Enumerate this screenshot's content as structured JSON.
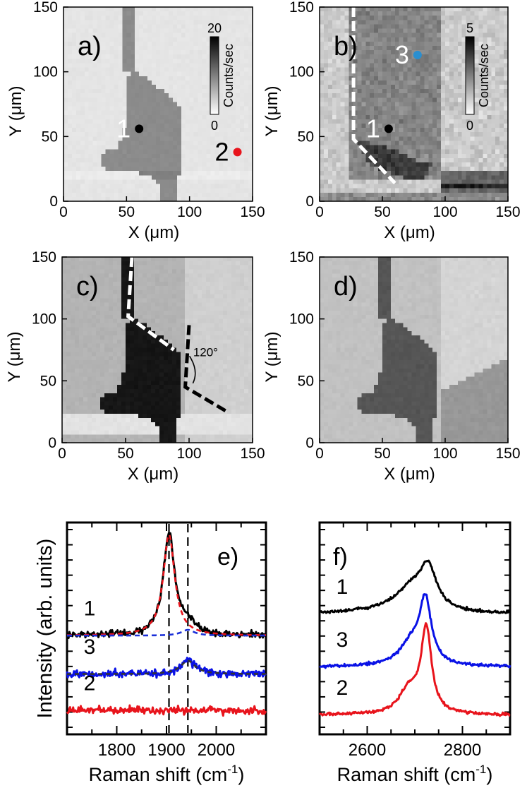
{
  "chart_data": [
    {
      "id": "a",
      "type": "heatmap",
      "panel_label": "a)",
      "xlabel": "X (μm)",
      "ylabel": "Y (μm)",
      "xlim": [
        0,
        150
      ],
      "ylim": [
        0,
        150
      ],
      "xticks": [
        "0",
        "50",
        "100",
        "150"
      ],
      "yticks": [
        "0",
        "50",
        "100",
        "150"
      ],
      "colorbar": {
        "label": "Counts/sec",
        "min": "0",
        "max": "20"
      },
      "markers": [
        {
          "label": "1",
          "x": 60,
          "y": 56,
          "color": "#000000"
        },
        {
          "label": "2",
          "x": 138,
          "y": 38,
          "color": "#e8141c"
        }
      ]
    },
    {
      "id": "b",
      "type": "heatmap",
      "panel_label": "b)",
      "xlabel": "X (μm)",
      "ylabel": "Y (μm)",
      "xlim": [
        0,
        150
      ],
      "ylim": [
        0,
        150
      ],
      "xticks": [
        "0",
        "50",
        "100",
        "150"
      ],
      "yticks": [
        "0",
        "50",
        "100",
        "150"
      ],
      "colorbar": {
        "label": "Counts/sec",
        "min": "0",
        "max": "5"
      },
      "markers": [
        {
          "label": "1",
          "x": 55,
          "y": 56,
          "color": "#000000"
        },
        {
          "label": "3",
          "x": 78,
          "y": 113,
          "color": "#2a8fd0"
        }
      ],
      "edge_lines": [
        {
          "points": [
            [
              27,
              150
            ],
            [
              27,
              48
            ],
            [
              60,
              14
            ]
          ],
          "color": "#ffffff"
        }
      ]
    },
    {
      "id": "c",
      "type": "heatmap",
      "panel_label": "c)",
      "xlabel": "X (μm)",
      "ylabel": "Y (μm)",
      "xlim": [
        0,
        150
      ],
      "ylim": [
        0,
        150
      ],
      "xticks": [
        "0",
        "50",
        "100",
        "150"
      ],
      "yticks": [
        "0",
        "50",
        "100",
        "150"
      ],
      "angle_label": "120°",
      "edge_lines": [
        {
          "points": [
            [
              55,
              150
            ],
            [
              52,
              102
            ],
            [
              88,
              75
            ]
          ],
          "color": "#ffffff"
        },
        {
          "points": [
            [
              100,
              95
            ],
            [
              97,
              45
            ],
            [
              130,
              25
            ]
          ],
          "color": "#000000"
        }
      ]
    },
    {
      "id": "d",
      "type": "heatmap",
      "panel_label": "d)",
      "xlabel": "X (μm)",
      "ylabel": "Y (μm)",
      "xlim": [
        0,
        150
      ],
      "ylim": [
        0,
        150
      ],
      "xticks": [
        "0",
        "50",
        "100",
        "150"
      ],
      "yticks": [
        "0",
        "50",
        "100",
        "150"
      ]
    },
    {
      "id": "e",
      "type": "line",
      "panel_label": "e)",
      "xlabel": "Raman shift (cm",
      "xlabel_sup": "-1",
      "xlabel_tail": ")",
      "ylabel": "Intensity (arb. units)",
      "xlim": [
        1700,
        2100
      ],
      "xticks": [
        "1800",
        "1900",
        "2000"
      ],
      "ylim": [
        -0.2,
        4.2
      ],
      "vlines": [
        1905,
        1943
      ],
      "series": [
        {
          "name": "1",
          "color": "#000000",
          "offset": 1.85,
          "peaks": [
            [
              1905,
              2.1,
              14
            ],
            [
              1943,
              0.22,
              16
            ]
          ],
          "noise": 0.07
        },
        {
          "name": "3",
          "color": "#0a12e6",
          "offset": 1.05,
          "peaks": [
            [
              1943,
              0.3,
              18
            ]
          ],
          "noise": 0.08
        },
        {
          "name": "2",
          "color": "#e8141c",
          "offset": 0.3,
          "peaks": [],
          "noise": 0.08
        }
      ],
      "fits": [
        {
          "color": "#e8141c",
          "dash": "7,5",
          "offset": 1.85,
          "peaks": [
            [
              1905,
              2.1,
              14
            ]
          ]
        },
        {
          "color": "#1a2fd8",
          "dash": "7,5",
          "offset": 1.85,
          "peaks": [
            [
              1943,
              0.12,
              16
            ]
          ]
        },
        {
          "color": "#333333",
          "dash": "6,5",
          "offset": 1.05,
          "peaks": [
            [
              1943,
              0.28,
              18
            ]
          ]
        }
      ]
    },
    {
      "id": "f",
      "type": "line",
      "panel_label": "f)",
      "xlabel": "Raman shift (cm",
      "xlabel_sup": "-1",
      "xlabel_tail": ")",
      "xlim": [
        2500,
        2900
      ],
      "xticks": [
        "2600",
        "2800"
      ],
      "ylim": [
        -0.2,
        4.2
      ],
      "series": [
        {
          "name": "1",
          "color": "#000000",
          "offset": 2.3,
          "peaks": [
            [
              2728,
              0.85,
              22
            ],
            [
              2692,
              0.4,
              35
            ],
            [
              2660,
              0.1,
              70
            ]
          ],
          "noise": 0.03
        },
        {
          "name": "3",
          "color": "#0a12e6",
          "offset": 1.2,
          "peaks": [
            [
              2722,
              1.3,
              15
            ],
            [
              2692,
              0.45,
              30
            ]
          ],
          "noise": 0.03
        },
        {
          "name": "2",
          "color": "#e8141c",
          "offset": 0.2,
          "peaks": [
            [
              2724,
              1.75,
              13
            ],
            [
              2688,
              0.5,
              25
            ]
          ],
          "noise": 0.03
        }
      ]
    }
  ]
}
